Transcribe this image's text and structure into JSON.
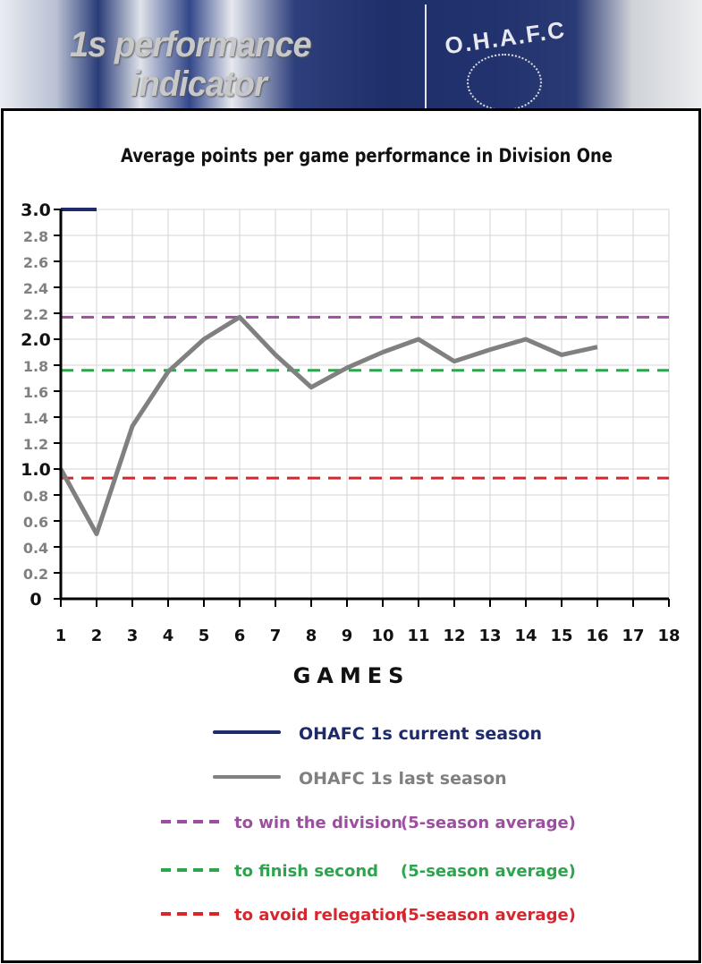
{
  "banner": {
    "title_line1": "1s performance",
    "title_line2": "indicator",
    "crest_text": "O.H.A.F.C"
  },
  "chart_data": {
    "type": "line",
    "title": "Average points per game performance in Division One",
    "xlabel": "GAMES",
    "ylabel": "",
    "x": [
      1,
      2,
      3,
      4,
      5,
      6,
      7,
      8,
      9,
      10,
      11,
      12,
      13,
      14,
      15,
      16,
      17,
      18
    ],
    "xlim": [
      1,
      18
    ],
    "ylim": [
      0,
      3.0
    ],
    "yticks": [
      "0",
      "0.2",
      "0.4",
      "0.6",
      "0.8",
      "1.0",
      "1.2",
      "1.4",
      "1.6",
      "1.8",
      "2.0",
      "2.2",
      "2.4",
      "2.6",
      "2.8",
      "3.0"
    ],
    "xticks": [
      "1",
      "2",
      "3",
      "4",
      "5",
      "6",
      "7",
      "8",
      "9",
      "10",
      "11",
      "12",
      "13",
      "14",
      "15",
      "16",
      "17",
      "18"
    ],
    "grid": true,
    "series": [
      {
        "name": "OHAFC  1s current season",
        "color": "#1f2a6b",
        "style": "solid",
        "x": [
          1,
          2
        ],
        "values": [
          3.0,
          3.0
        ]
      },
      {
        "name": "OHAFC  1s last season",
        "color": "#808080",
        "style": "solid",
        "x": [
          1,
          2,
          3,
          4,
          5,
          6,
          7,
          8,
          9,
          10,
          11,
          12,
          13,
          14,
          15,
          16
        ],
        "values": [
          1.0,
          0.5,
          1.33,
          1.75,
          2.0,
          2.17,
          1.88,
          1.63,
          1.78,
          1.9,
          2.0,
          1.83,
          1.92,
          2.0,
          1.88,
          1.94
        ]
      },
      {
        "name": "to win the division",
        "note": "(5-season average)",
        "color": "#9b4f9e",
        "style": "dashed",
        "value": 2.17
      },
      {
        "name": "to finish second",
        "note": "(5-season average)",
        "color": "#2ea44f",
        "style": "dashed",
        "value": 1.76
      },
      {
        "name": "to avoid relegation",
        "note": "(5-season average)",
        "color": "#d7262d",
        "style": "dashed",
        "value": 0.93
      }
    ],
    "legend_position": "bottom"
  }
}
